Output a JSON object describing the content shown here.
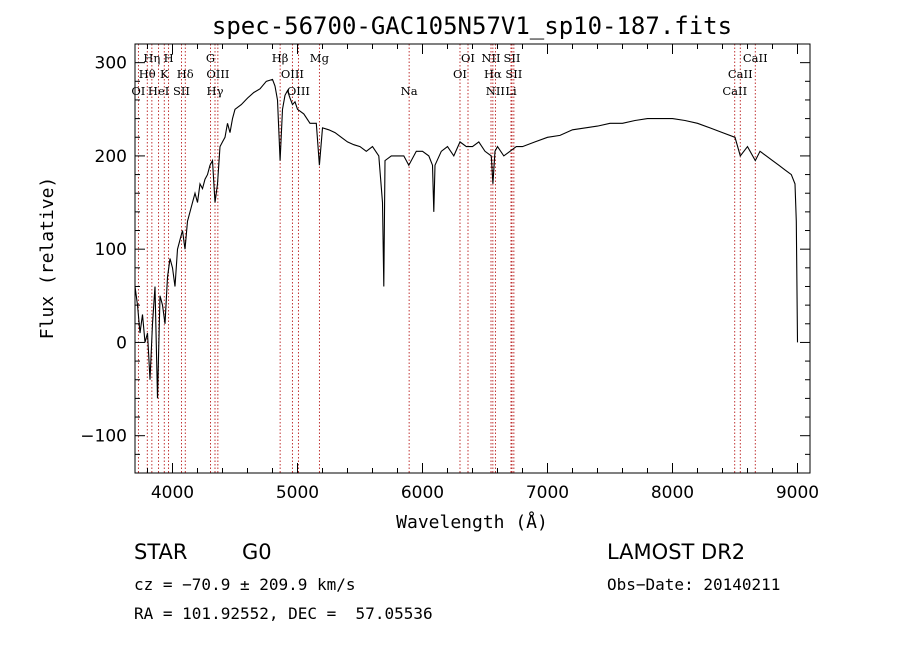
{
  "chart_data": {
    "type": "line",
    "title": "spec-56700-GAC105N57V1_sp10-187.fits",
    "xlabel": "Wavelength (Å)",
    "ylabel": "Flux (relative)",
    "xlim": [
      3700,
      9100
    ],
    "ylim": [
      -140,
      320
    ],
    "xticks": [
      4000,
      5000,
      6000,
      7000,
      8000,
      9000
    ],
    "yticks": [
      -100,
      0,
      100,
      200,
      300
    ],
    "xtick_labels": [
      "4000",
      "5000",
      "6000",
      "7000",
      "8000",
      "9000"
    ],
    "ytick_labels": [
      "−100",
      "0",
      "100",
      "200",
      "300"
    ],
    "grid": false,
    "series": [
      {
        "x": [
          3700,
          3720,
          3740,
          3760,
          3780,
          3800,
          3820,
          3840,
          3860,
          3880,
          3900,
          3920,
          3940,
          3960,
          3980,
          4000,
          4020,
          4040,
          4060,
          4080,
          4100,
          4120,
          4140,
          4160,
          4180,
          4200,
          4220,
          4240,
          4260,
          4280,
          4300,
          4320,
          4340,
          4360,
          4380,
          4400,
          4420,
          4440,
          4460,
          4480,
          4500,
          4550,
          4600,
          4650,
          4700,
          4750,
          4800,
          4820,
          4840,
          4861,
          4880,
          4900,
          4920,
          4940,
          4960,
          4980,
          5000,
          5050,
          5100,
          5150,
          5175,
          5200,
          5250,
          5300,
          5350,
          5400,
          5450,
          5500,
          5550,
          5600,
          5650,
          5680,
          5690,
          5700,
          5750,
          5800,
          5850,
          5890,
          5950,
          6000,
          6050,
          6080,
          6090,
          6100,
          6150,
          6200,
          6250,
          6300,
          6350,
          6400,
          6450,
          6500,
          6550,
          6563,
          6580,
          6600,
          6650,
          6700,
          6750,
          6800,
          6900,
          7000,
          7100,
          7200,
          7300,
          7400,
          7500,
          7600,
          7700,
          7800,
          7900,
          8000,
          8100,
          8200,
          8300,
          8400,
          8500,
          8542,
          8600,
          8662,
          8700,
          8750,
          8800,
          8850,
          8900,
          8950,
          8980,
          8990,
          9000
        ],
        "y": [
          60,
          40,
          10,
          30,
          0,
          10,
          -40,
          20,
          60,
          -60,
          50,
          40,
          20,
          70,
          90,
          80,
          60,
          100,
          110,
          120,
          100,
          130,
          140,
          150,
          160,
          150,
          170,
          165,
          175,
          180,
          190,
          195,
          150,
          170,
          210,
          215,
          220,
          235,
          225,
          240,
          250,
          255,
          262,
          268,
          272,
          280,
          282,
          275,
          260,
          195,
          250,
          265,
          270,
          262,
          255,
          258,
          250,
          245,
          235,
          235,
          190,
          230,
          228,
          225,
          220,
          215,
          212,
          210,
          205,
          210,
          200,
          150,
          60,
          195,
          200,
          200,
          200,
          190,
          205,
          205,
          200,
          190,
          140,
          190,
          205,
          210,
          200,
          215,
          210,
          210,
          215,
          205,
          200,
          170,
          205,
          210,
          200,
          205,
          210,
          210,
          215,
          220,
          222,
          228,
          230,
          232,
          235,
          235,
          238,
          240,
          240,
          240,
          238,
          235,
          230,
          225,
          220,
          200,
          210,
          195,
          205,
          200,
          195,
          190,
          185,
          180,
          170,
          130,
          0
        ]
      }
    ],
    "line_markers": [
      {
        "label": "OI",
        "x": 3727,
        "row": 3
      },
      {
        "label": "Hη",
        "x": 3835,
        "row": 1
      },
      {
        "label": "Hθ",
        "x": 3798,
        "row": 2
      },
      {
        "label": "HeI",
        "x": 3889,
        "row": 3
      },
      {
        "label": "K",
        "x": 3934,
        "row": 2
      },
      {
        "label": "H",
        "x": 3969,
        "row": 1
      },
      {
        "label": "SII",
        "x": 4072,
        "row": 3
      },
      {
        "label": "Hδ",
        "x": 4102,
        "row": 2
      },
      {
        "label": "G",
        "x": 4304,
        "row": 1
      },
      {
        "label": "OIII",
        "x": 4363,
        "row": 2
      },
      {
        "label": "Hγ",
        "x": 4340,
        "row": 3
      },
      {
        "label": "Hβ",
        "x": 4861,
        "row": 1
      },
      {
        "label": "OIII",
        "x": 4959,
        "row": 2
      },
      {
        "label": "OIII",
        "x": 5007,
        "row": 3
      },
      {
        "label": "Mg",
        "x": 5175,
        "row": 1
      },
      {
        "label": "Na",
        "x": 5893,
        "row": 3
      },
      {
        "label": "OI",
        "x": 6364,
        "row": 1
      },
      {
        "label": "OI",
        "x": 6300,
        "row": 2
      },
      {
        "label": "NII",
        "x": 6548,
        "row": 1
      },
      {
        "label": "NII",
        "x": 6583,
        "row": 3
      },
      {
        "label": "Hα",
        "x": 6563,
        "row": 2
      },
      {
        "label": "SII",
        "x": 6716,
        "row": 1
      },
      {
        "label": "SII",
        "x": 6731,
        "row": 2
      },
      {
        "label": "Li",
        "x": 6708,
        "row": 3
      },
      {
        "label": "CaII",
        "x": 8662,
        "row": 1
      },
      {
        "label": "CaII",
        "x": 8542,
        "row": 2
      },
      {
        "label": "CaII",
        "x": 8498,
        "row": 3
      }
    ],
    "colors": {
      "spectrum": "#000000",
      "markers": "#b00000",
      "axes": "#000000"
    }
  },
  "info": {
    "object_class": "STAR",
    "subclass": "G0",
    "survey": "LAMOST DR2",
    "redshift": "cz = −70.9 ± 209.9 km/s",
    "obs_date": "Obs−Date: 20140211",
    "coords": "RA = 101.92552, DEC =  57.05536"
  }
}
